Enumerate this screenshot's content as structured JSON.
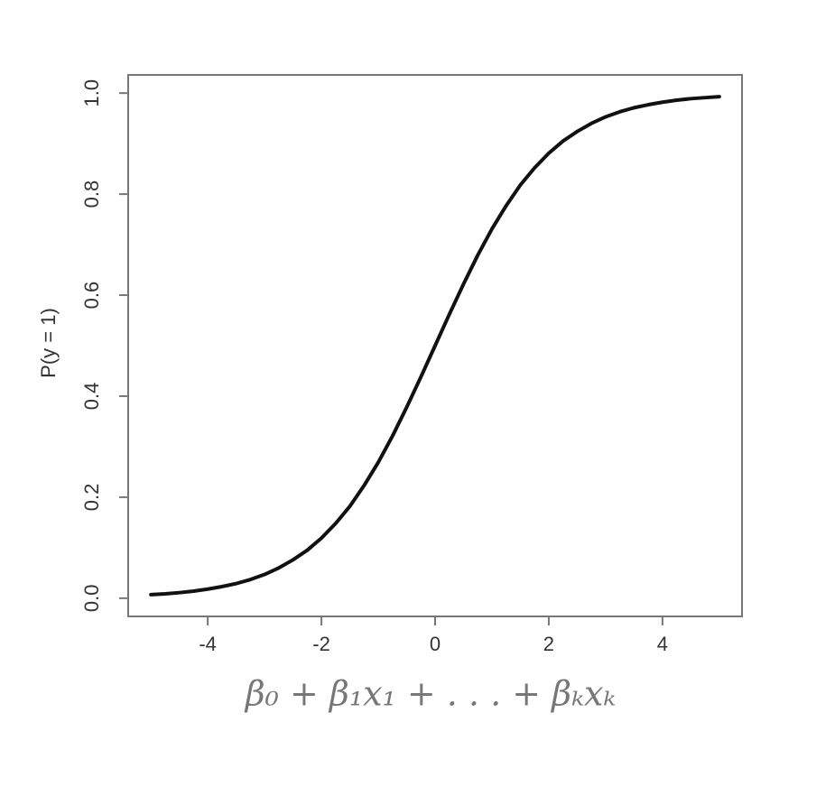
{
  "chart_data": {
    "type": "line",
    "x": [
      -5,
      -4.75,
      -4.5,
      -4.25,
      -4,
      -3.75,
      -3.5,
      -3.25,
      -3,
      -2.75,
      -2.5,
      -2.25,
      -2,
      -1.75,
      -1.5,
      -1.25,
      -1,
      -0.75,
      -0.5,
      -0.25,
      0,
      0.25,
      0.5,
      0.75,
      1,
      1.25,
      1.5,
      1.75,
      2,
      2.25,
      2.5,
      2.75,
      3,
      3.25,
      3.5,
      3.75,
      4,
      4.25,
      4.5,
      4.75,
      5
    ],
    "values": [
      0.007,
      0.0086,
      0.011,
      0.014,
      0.018,
      0.023,
      0.029,
      0.037,
      0.047,
      0.06,
      0.076,
      0.095,
      0.119,
      0.148,
      0.182,
      0.223,
      0.269,
      0.321,
      0.378,
      0.438,
      0.5,
      0.562,
      0.622,
      0.679,
      0.731,
      0.777,
      0.818,
      0.852,
      0.881,
      0.905,
      0.924,
      0.94,
      0.953,
      0.963,
      0.971,
      0.977,
      0.982,
      0.986,
      0.989,
      0.991,
      0.993
    ],
    "color": "#111111",
    "xlabel": "β₀ + β₁x₁ + . . . + βₖxₖ",
    "ylabel": "P(y = 1)",
    "xlim": [
      -5.4,
      5.4
    ],
    "ylim": [
      -0.036,
      1.036
    ],
    "xticks": [
      -4,
      -2,
      0,
      2,
      4
    ],
    "yticks": [
      {
        "value": 0,
        "label": "0.0"
      },
      0.2,
      0.4,
      0.6,
      0.8,
      {
        "value": 1,
        "label": "1.0"
      }
    ]
  }
}
